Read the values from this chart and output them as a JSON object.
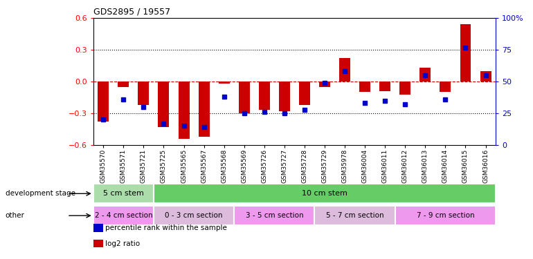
{
  "title": "GDS2895 / 19557",
  "samples": [
    "GSM35570",
    "GSM35571",
    "GSM35721",
    "GSM35725",
    "GSM35565",
    "GSM35567",
    "GSM35568",
    "GSM35569",
    "GSM35726",
    "GSM35727",
    "GSM35728",
    "GSM35729",
    "GSM35978",
    "GSM36004",
    "GSM36011",
    "GSM36012",
    "GSM36013",
    "GSM36014",
    "GSM36015",
    "GSM36016"
  ],
  "log2_ratio": [
    -0.38,
    -0.05,
    -0.22,
    -0.43,
    -0.54,
    -0.52,
    -0.02,
    -0.3,
    -0.27,
    -0.28,
    -0.22,
    -0.05,
    0.22,
    -0.1,
    -0.09,
    -0.12,
    0.13,
    -0.1,
    0.54,
    0.1
  ],
  "pct_rank": [
    20,
    36,
    30,
    17,
    15,
    14,
    38,
    25,
    26,
    25,
    28,
    49,
    58,
    33,
    35,
    32,
    55,
    36,
    77,
    55
  ],
  "ylim": [
    -0.6,
    0.6
  ],
  "yticks": [
    -0.6,
    -0.3,
    0.0,
    0.3,
    0.6
  ],
  "pct_ylim": [
    0,
    100
  ],
  "pct_yticks": [
    0,
    25,
    50,
    75,
    100
  ],
  "bar_color": "#cc0000",
  "pct_color": "#0000cc",
  "zero_line_color": "#cc0000",
  "background_color": "#ffffff",
  "dev_stage_row": [
    {
      "label": "5 cm stem",
      "start": 0,
      "end": 3,
      "color": "#aaddaa"
    },
    {
      "label": "10 cm stem",
      "start": 3,
      "end": 20,
      "color": "#66cc66"
    }
  ],
  "other_row": [
    {
      "label": "2 - 4 cm section",
      "start": 0,
      "end": 3,
      "color": "#ee99ee"
    },
    {
      "label": "0 - 3 cm section",
      "start": 3,
      "end": 7,
      "color": "#ddbbdd"
    },
    {
      "label": "3 - 5 cm section",
      "start": 7,
      "end": 11,
      "color": "#ee99ee"
    },
    {
      "label": "5 - 7 cm section",
      "start": 11,
      "end": 15,
      "color": "#ddbbdd"
    },
    {
      "label": "7 - 9 cm section",
      "start": 15,
      "end": 20,
      "color": "#ee99ee"
    }
  ],
  "dev_label": "development stage",
  "other_label": "other",
  "legend_items": [
    {
      "label": "log2 ratio",
      "color": "#cc0000"
    },
    {
      "label": "percentile rank within the sample",
      "color": "#0000cc"
    }
  ]
}
